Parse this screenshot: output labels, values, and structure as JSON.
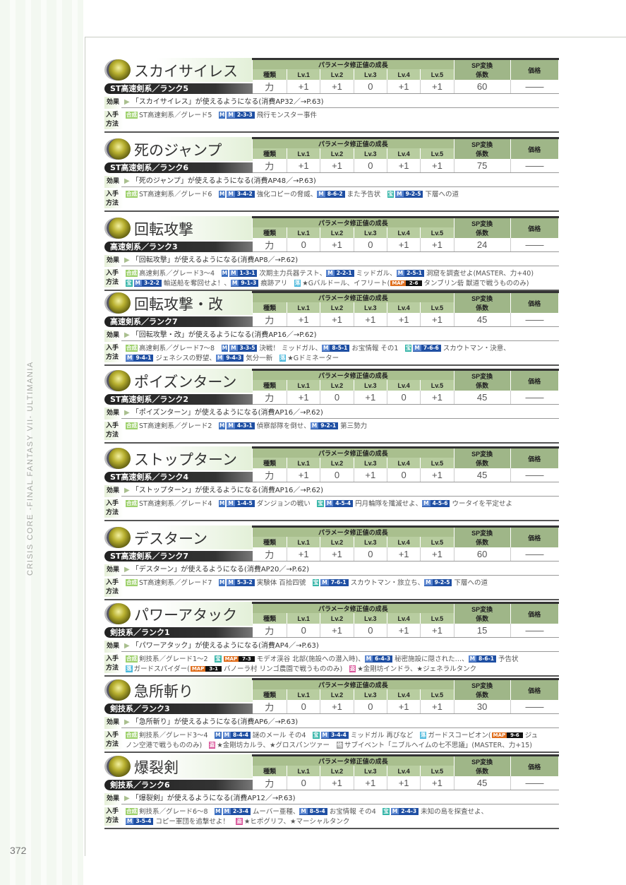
{
  "side_title": "CRISIS CORE -FINAL FANTASY VII- ULTIMANIA",
  "page_number": "372",
  "labels": {
    "param_growth": "パラメータ修正値の成長",
    "type": "種類",
    "levels": [
      "Lv.1",
      "Lv.2",
      "Lv.3",
      "Lv.4",
      "Lv.5"
    ],
    "sp_line1": "SP変換",
    "sp_line2": "係数",
    "price": "価格",
    "effect": "効果",
    "acq_line1": "入手",
    "acq_line2": "方法",
    "mission_icon": "M",
    "map_icon": "MAP"
  },
  "colors": {
    "header_green": "#a9bf8e",
    "mission_blue": "#1f4fa3",
    "map_orange": "#e07020",
    "synth_green": "#9cd06a",
    "treasure_teal": "#35b5a8",
    "drop_cyan": "#4ab8dc",
    "steal_pink": "#d9559a"
  },
  "entries": [
    {
      "name": "スカイサイレス",
      "rank": "ST高速剣系／ランク5",
      "type": "力",
      "lv": [
        "+1",
        "+1",
        "0",
        "+1",
        "+1"
      ],
      "sp": "60",
      "price": "——",
      "effect": "「スカイサイレス」が使えるようになる(消費AP32／→P.63)",
      "acq": [
        [
          {
            "tag": "合成",
            "c": "gou"
          },
          {
            "t": "ST高速剣系／グレード5　"
          },
          {
            "tag": "M",
            "c": "M"
          },
          {
            "m": "2-3-3"
          },
          {
            "t": "飛行モンスター事件"
          }
        ]
      ]
    },
    {
      "name": "死のジャンプ",
      "rank": "ST高速剣系／ランク6",
      "type": "力",
      "lv": [
        "+1",
        "+1",
        "0",
        "+1",
        "+1"
      ],
      "sp": "75",
      "price": "——",
      "effect": "「死のジャンプ」が使えるようになる(消費AP48／→P.63)",
      "acq": [
        [
          {
            "tag": "合成",
            "c": "gou"
          },
          {
            "t": "ST高速剣系／グレード6　"
          },
          {
            "tag": "M",
            "c": "M"
          },
          {
            "m": "3-4-2"
          },
          {
            "t": "強化コピーの脅威、"
          },
          {
            "m": "8-6-2"
          },
          {
            "t": "また予告状　"
          },
          {
            "tag": "宝",
            "c": "ho"
          },
          {
            "m": "9-2-5"
          },
          {
            "t": "下層への道"
          }
        ]
      ]
    },
    {
      "name": "回転攻撃",
      "rank": "高速剣系／ランク3",
      "type": "力",
      "lv": [
        "0",
        "+1",
        "0",
        "+1",
        "+1"
      ],
      "sp": "24",
      "price": "——",
      "effect": "「回転攻撃」が使えるようになる(消費AP8／→P.62)",
      "acq": [
        [
          {
            "tag": "合成",
            "c": "gou"
          },
          {
            "t": "高速剣系／グレード3～4　"
          },
          {
            "tag": "M",
            "c": "M"
          },
          {
            "m": "1-3-1"
          },
          {
            "t": "次期主力兵器テスト、"
          },
          {
            "m": "2-2-1"
          },
          {
            "t": "ミッドガル、"
          },
          {
            "m": "2-5-1"
          },
          {
            "t": "洞窟を調査せよ(MASTER、力+40)"
          }
        ],
        [
          {
            "tag": "宝",
            "c": "ho"
          },
          {
            "m": "3-2-2"
          },
          {
            "t": "輸送船を奪回せよ！、"
          },
          {
            "m": "9-1-3"
          },
          {
            "t": "痕跡アリ　"
          },
          {
            "tag": "落",
            "c": "ochi"
          },
          {
            "t": "★Gバルドール、イフリート("
          },
          {
            "map": "2-6"
          },
          {
            "t": "タンブリン砦 獣道で戦うもののみ)"
          }
        ]
      ]
    },
    {
      "name": "回転攻撃・改",
      "rank": "高速剣系／ランク7",
      "type": "力",
      "lv": [
        "+1",
        "+1",
        "+1",
        "+1",
        "+1"
      ],
      "sp": "45",
      "price": "——",
      "effect": "「回転攻撃・改」が使えるようになる(消費AP16／→P.62)",
      "acq": [
        [
          {
            "tag": "合成",
            "c": "gou"
          },
          {
            "t": "高速剣系／グレード7～8　"
          },
          {
            "tag": "M",
            "c": "M"
          },
          {
            "m": "3-3-5"
          },
          {
            "t": "決戦！ ミッドガル、"
          },
          {
            "m": "8-5-1"
          },
          {
            "t": "お宝情報 その1　"
          },
          {
            "tag": "宝",
            "c": "ho"
          },
          {
            "m": "7-6-6"
          },
          {
            "t": "スカウトマン・決意、"
          }
        ],
        [
          {
            "m": "9-4-1"
          },
          {
            "t": "ジェネシスの野望、"
          },
          {
            "m": "9-4-3"
          },
          {
            "t": "気分一新　"
          },
          {
            "tag": "落",
            "c": "ochi"
          },
          {
            "t": "★Gドミネーター"
          }
        ]
      ]
    },
    {
      "name": "ポイズンターン",
      "rank": "ST高速剣系／ランク2",
      "type": "力",
      "lv": [
        "+1",
        "0",
        "+1",
        "0",
        "+1"
      ],
      "sp": "45",
      "price": "——",
      "effect": "「ポイズンターン」が使えるようになる(消費AP16／→P.62)",
      "acq": [
        [
          {
            "tag": "合成",
            "c": "gou"
          },
          {
            "t": "ST高速剣系／グレード2　"
          },
          {
            "tag": "M",
            "c": "M"
          },
          {
            "m": "4-3-1"
          },
          {
            "t": "偵察部隊を倒せ、"
          },
          {
            "m": "9-2-1"
          },
          {
            "t": "第三勢力"
          }
        ]
      ]
    },
    {
      "name": "ストップターン",
      "rank": "ST高速剣系／ランク4",
      "type": "力",
      "lv": [
        "+1",
        "0",
        "+1",
        "0",
        "+1"
      ],
      "sp": "45",
      "price": "——",
      "effect": "「ストップターン」が使えるようになる(消費AP16／→P.62)",
      "acq": [
        [
          {
            "tag": "合成",
            "c": "gou"
          },
          {
            "t": "ST高速剣系／グレード4　"
          },
          {
            "tag": "M",
            "c": "M"
          },
          {
            "m": "1-4-5"
          },
          {
            "t": "ダンジョンの戦い　"
          },
          {
            "tag": "宝",
            "c": "ho"
          },
          {
            "m": "4-5-4"
          },
          {
            "t": "円月輪隊を殲滅せよ、"
          },
          {
            "m": "4-5-6"
          },
          {
            "t": "ウータイを平定せよ"
          }
        ]
      ]
    },
    {
      "name": "デスターン",
      "rank": "ST高速剣系／ランク7",
      "type": "力",
      "lv": [
        "+1",
        "+1",
        "0",
        "+1",
        "+1"
      ],
      "sp": "60",
      "price": "——",
      "effect": "「デスターン」が使えるようになる(消費AP20／→P.62)",
      "acq": [
        [
          {
            "tag": "合成",
            "c": "gou"
          },
          {
            "t": "ST高速剣系／グレード7　"
          },
          {
            "tag": "M",
            "c": "M"
          },
          {
            "m": "5-3-2"
          },
          {
            "t": "実験体 百拾四號　"
          },
          {
            "tag": "宝",
            "c": "ho"
          },
          {
            "m": "7-6-1"
          },
          {
            "t": "スカウトマン・旅立ち、"
          },
          {
            "m": "9-2-5"
          },
          {
            "t": "下層への道"
          }
        ]
      ]
    },
    {
      "name": "パワーアタック",
      "rank": "剣技系／ランク1",
      "type": "力",
      "lv": [
        "0",
        "+1",
        "0",
        "+1",
        "+1"
      ],
      "sp": "15",
      "price": "——",
      "effect": "「パワーアタック」が使えるようになる(消費AP4／→P.63)",
      "acq": [
        [
          {
            "tag": "合成",
            "c": "gou"
          },
          {
            "t": "剣技系／グレード1～2　"
          },
          {
            "tag": "宝",
            "c": "ho"
          },
          {
            "map": "7-3"
          },
          {
            "t": "モデオ渓谷 北部(施設への潜入時)、"
          },
          {
            "m": "6-4-3"
          },
          {
            "t": "秘密施設に隠された…、"
          },
          {
            "m": "8-6-1"
          },
          {
            "t": "予告状"
          }
        ],
        [
          {
            "tag": "落",
            "c": "ochi"
          },
          {
            "t": "ガードスパイダー("
          },
          {
            "map": "3-1"
          },
          {
            "t": "バノーラ村 リンゴ農園で戦うもののみ)　"
          },
          {
            "tag": "盗",
            "c": "nusu"
          },
          {
            "t": "★金剛坊インドラ、★ジェネラルタンク"
          }
        ]
      ]
    },
    {
      "name": "急所斬り",
      "rank": "剣技系／ランク3",
      "type": "力",
      "lv": [
        "0",
        "+1",
        "0",
        "+1",
        "+1"
      ],
      "sp": "30",
      "price": "——",
      "effect": "「急所斬り」が使えるようになる(消費AP6／→P.63)",
      "acq": [
        [
          {
            "tag": "合成",
            "c": "gou"
          },
          {
            "t": "剣技系／グレード3～4　"
          },
          {
            "tag": "M",
            "c": "M"
          },
          {
            "m": "8-4-4"
          },
          {
            "t": "謎のメール その4　"
          },
          {
            "tag": "宝",
            "c": "ho"
          },
          {
            "m": "3-4-4"
          },
          {
            "t": "ミッドガル 再びなど　"
          },
          {
            "tag": "落",
            "c": "ochi"
          },
          {
            "t": "ガードスコーピオン("
          },
          {
            "map": "9-6"
          },
          {
            "t": "ジュ"
          }
        ],
        [
          {
            "t": "ノン空港で戦うもののみ)　"
          },
          {
            "tag": "盗",
            "c": "nusu"
          },
          {
            "t": "★金剛坊カルラ、★グロスパンツァー　"
          },
          {
            "tag": "他",
            "c": "ta"
          },
          {
            "t": "サブイベント「ニブルヘイムの七不思議」(MASTER、力+15)"
          }
        ]
      ]
    },
    {
      "name": "爆裂剣",
      "rank": "剣技系／ランク6",
      "type": "力",
      "lv": [
        "0",
        "+1",
        "+1",
        "+1",
        "+1"
      ],
      "sp": "45",
      "price": "——",
      "effect": "「爆裂剣」が使えるようになる(消費AP12／→P.63)",
      "acq": [
        [
          {
            "tag": "合成",
            "c": "gou"
          },
          {
            "t": "剣技系／グレード6～8　"
          },
          {
            "tag": "M",
            "c": "M"
          },
          {
            "m": "2-3-4"
          },
          {
            "t": "ムーバー亜種、"
          },
          {
            "m": "8-5-4"
          },
          {
            "t": "お宝情報 その4　"
          },
          {
            "tag": "宝",
            "c": "ho"
          },
          {
            "m": "2-4-3"
          },
          {
            "t": "未知の島を探査せよ、"
          }
        ],
        [
          {
            "m": "3-5-4"
          },
          {
            "t": "コピー軍団を追撃せよ！　"
          },
          {
            "tag": "盗",
            "c": "nusu"
          },
          {
            "t": "★ヒポグリフ、★マーシャルタンク"
          }
        ]
      ]
    }
  ]
}
